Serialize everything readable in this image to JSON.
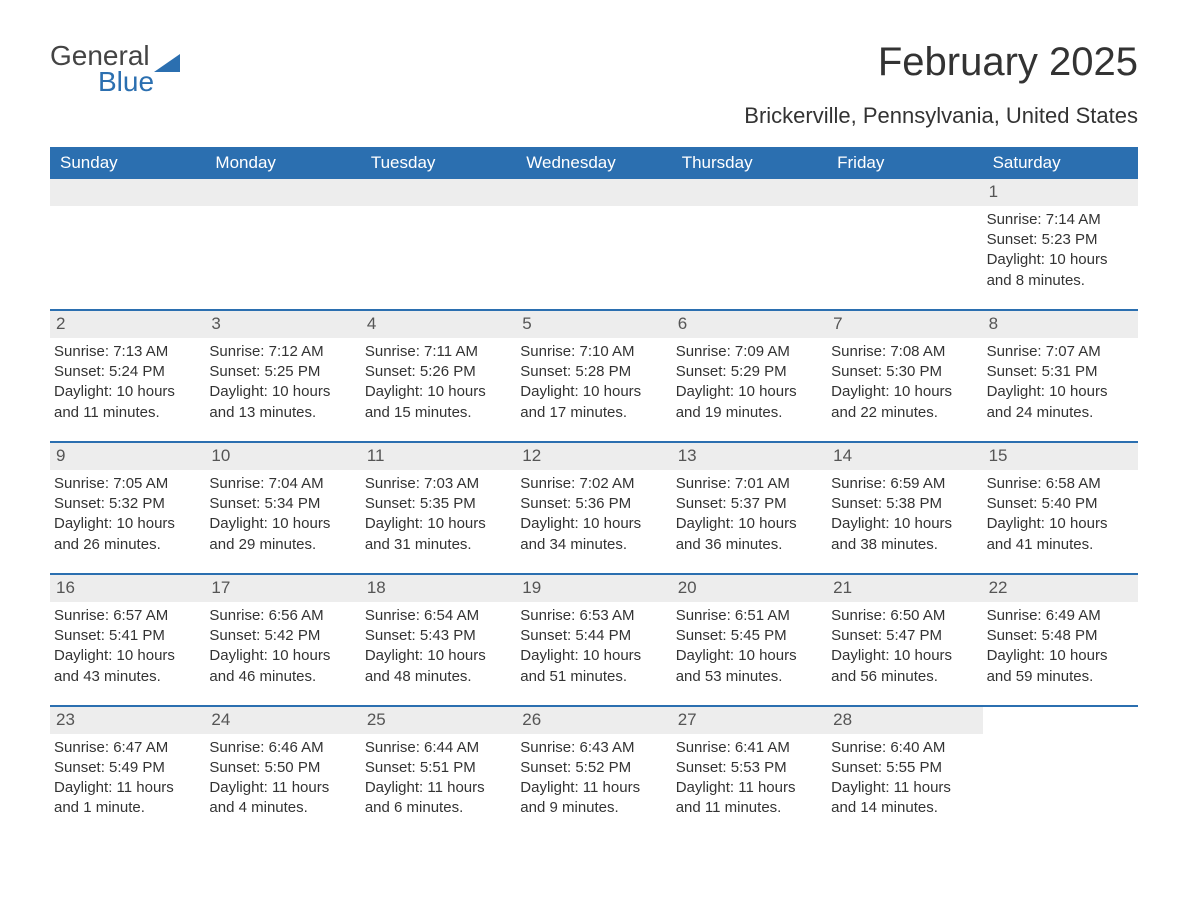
{
  "logo": {
    "general": "General",
    "blue": "Blue"
  },
  "title": "February 2025",
  "location": "Brickerville, Pennsylvania, United States",
  "headers": [
    "Sunday",
    "Monday",
    "Tuesday",
    "Wednesday",
    "Thursday",
    "Friday",
    "Saturday"
  ],
  "colors": {
    "header_bg": "#2b6fb0",
    "header_fg": "#ffffff",
    "daynum_bg": "#ededed",
    "row_border": "#2b6fb0",
    "text": "#333333"
  },
  "weeks": [
    [
      null,
      null,
      null,
      null,
      null,
      null,
      {
        "n": "1",
        "sr": "Sunrise: 7:14 AM",
        "ss": "Sunset: 5:23 PM",
        "dl1": "Daylight: 10 hours",
        "dl2": "and 8 minutes."
      }
    ],
    [
      {
        "n": "2",
        "sr": "Sunrise: 7:13 AM",
        "ss": "Sunset: 5:24 PM",
        "dl1": "Daylight: 10 hours",
        "dl2": "and 11 minutes."
      },
      {
        "n": "3",
        "sr": "Sunrise: 7:12 AM",
        "ss": "Sunset: 5:25 PM",
        "dl1": "Daylight: 10 hours",
        "dl2": "and 13 minutes."
      },
      {
        "n": "4",
        "sr": "Sunrise: 7:11 AM",
        "ss": "Sunset: 5:26 PM",
        "dl1": "Daylight: 10 hours",
        "dl2": "and 15 minutes."
      },
      {
        "n": "5",
        "sr": "Sunrise: 7:10 AM",
        "ss": "Sunset: 5:28 PM",
        "dl1": "Daylight: 10 hours",
        "dl2": "and 17 minutes."
      },
      {
        "n": "6",
        "sr": "Sunrise: 7:09 AM",
        "ss": "Sunset: 5:29 PM",
        "dl1": "Daylight: 10 hours",
        "dl2": "and 19 minutes."
      },
      {
        "n": "7",
        "sr": "Sunrise: 7:08 AM",
        "ss": "Sunset: 5:30 PM",
        "dl1": "Daylight: 10 hours",
        "dl2": "and 22 minutes."
      },
      {
        "n": "8",
        "sr": "Sunrise: 7:07 AM",
        "ss": "Sunset: 5:31 PM",
        "dl1": "Daylight: 10 hours",
        "dl2": "and 24 minutes."
      }
    ],
    [
      {
        "n": "9",
        "sr": "Sunrise: 7:05 AM",
        "ss": "Sunset: 5:32 PM",
        "dl1": "Daylight: 10 hours",
        "dl2": "and 26 minutes."
      },
      {
        "n": "10",
        "sr": "Sunrise: 7:04 AM",
        "ss": "Sunset: 5:34 PM",
        "dl1": "Daylight: 10 hours",
        "dl2": "and 29 minutes."
      },
      {
        "n": "11",
        "sr": "Sunrise: 7:03 AM",
        "ss": "Sunset: 5:35 PM",
        "dl1": "Daylight: 10 hours",
        "dl2": "and 31 minutes."
      },
      {
        "n": "12",
        "sr": "Sunrise: 7:02 AM",
        "ss": "Sunset: 5:36 PM",
        "dl1": "Daylight: 10 hours",
        "dl2": "and 34 minutes."
      },
      {
        "n": "13",
        "sr": "Sunrise: 7:01 AM",
        "ss": "Sunset: 5:37 PM",
        "dl1": "Daylight: 10 hours",
        "dl2": "and 36 minutes."
      },
      {
        "n": "14",
        "sr": "Sunrise: 6:59 AM",
        "ss": "Sunset: 5:38 PM",
        "dl1": "Daylight: 10 hours",
        "dl2": "and 38 minutes."
      },
      {
        "n": "15",
        "sr": "Sunrise: 6:58 AM",
        "ss": "Sunset: 5:40 PM",
        "dl1": "Daylight: 10 hours",
        "dl2": "and 41 minutes."
      }
    ],
    [
      {
        "n": "16",
        "sr": "Sunrise: 6:57 AM",
        "ss": "Sunset: 5:41 PM",
        "dl1": "Daylight: 10 hours",
        "dl2": "and 43 minutes."
      },
      {
        "n": "17",
        "sr": "Sunrise: 6:56 AM",
        "ss": "Sunset: 5:42 PM",
        "dl1": "Daylight: 10 hours",
        "dl2": "and 46 minutes."
      },
      {
        "n": "18",
        "sr": "Sunrise: 6:54 AM",
        "ss": "Sunset: 5:43 PM",
        "dl1": "Daylight: 10 hours",
        "dl2": "and 48 minutes."
      },
      {
        "n": "19",
        "sr": "Sunrise: 6:53 AM",
        "ss": "Sunset: 5:44 PM",
        "dl1": "Daylight: 10 hours",
        "dl2": "and 51 minutes."
      },
      {
        "n": "20",
        "sr": "Sunrise: 6:51 AM",
        "ss": "Sunset: 5:45 PM",
        "dl1": "Daylight: 10 hours",
        "dl2": "and 53 minutes."
      },
      {
        "n": "21",
        "sr": "Sunrise: 6:50 AM",
        "ss": "Sunset: 5:47 PM",
        "dl1": "Daylight: 10 hours",
        "dl2": "and 56 minutes."
      },
      {
        "n": "22",
        "sr": "Sunrise: 6:49 AM",
        "ss": "Sunset: 5:48 PM",
        "dl1": "Daylight: 10 hours",
        "dl2": "and 59 minutes."
      }
    ],
    [
      {
        "n": "23",
        "sr": "Sunrise: 6:47 AM",
        "ss": "Sunset: 5:49 PM",
        "dl1": "Daylight: 11 hours",
        "dl2": "and 1 minute."
      },
      {
        "n": "24",
        "sr": "Sunrise: 6:46 AM",
        "ss": "Sunset: 5:50 PM",
        "dl1": "Daylight: 11 hours",
        "dl2": "and 4 minutes."
      },
      {
        "n": "25",
        "sr": "Sunrise: 6:44 AM",
        "ss": "Sunset: 5:51 PM",
        "dl1": "Daylight: 11 hours",
        "dl2": "and 6 minutes."
      },
      {
        "n": "26",
        "sr": "Sunrise: 6:43 AM",
        "ss": "Sunset: 5:52 PM",
        "dl1": "Daylight: 11 hours",
        "dl2": "and 9 minutes."
      },
      {
        "n": "27",
        "sr": "Sunrise: 6:41 AM",
        "ss": "Sunset: 5:53 PM",
        "dl1": "Daylight: 11 hours",
        "dl2": "and 11 minutes."
      },
      {
        "n": "28",
        "sr": "Sunrise: 6:40 AM",
        "ss": "Sunset: 5:55 PM",
        "dl1": "Daylight: 11 hours",
        "dl2": "and 14 minutes."
      },
      null
    ]
  ]
}
